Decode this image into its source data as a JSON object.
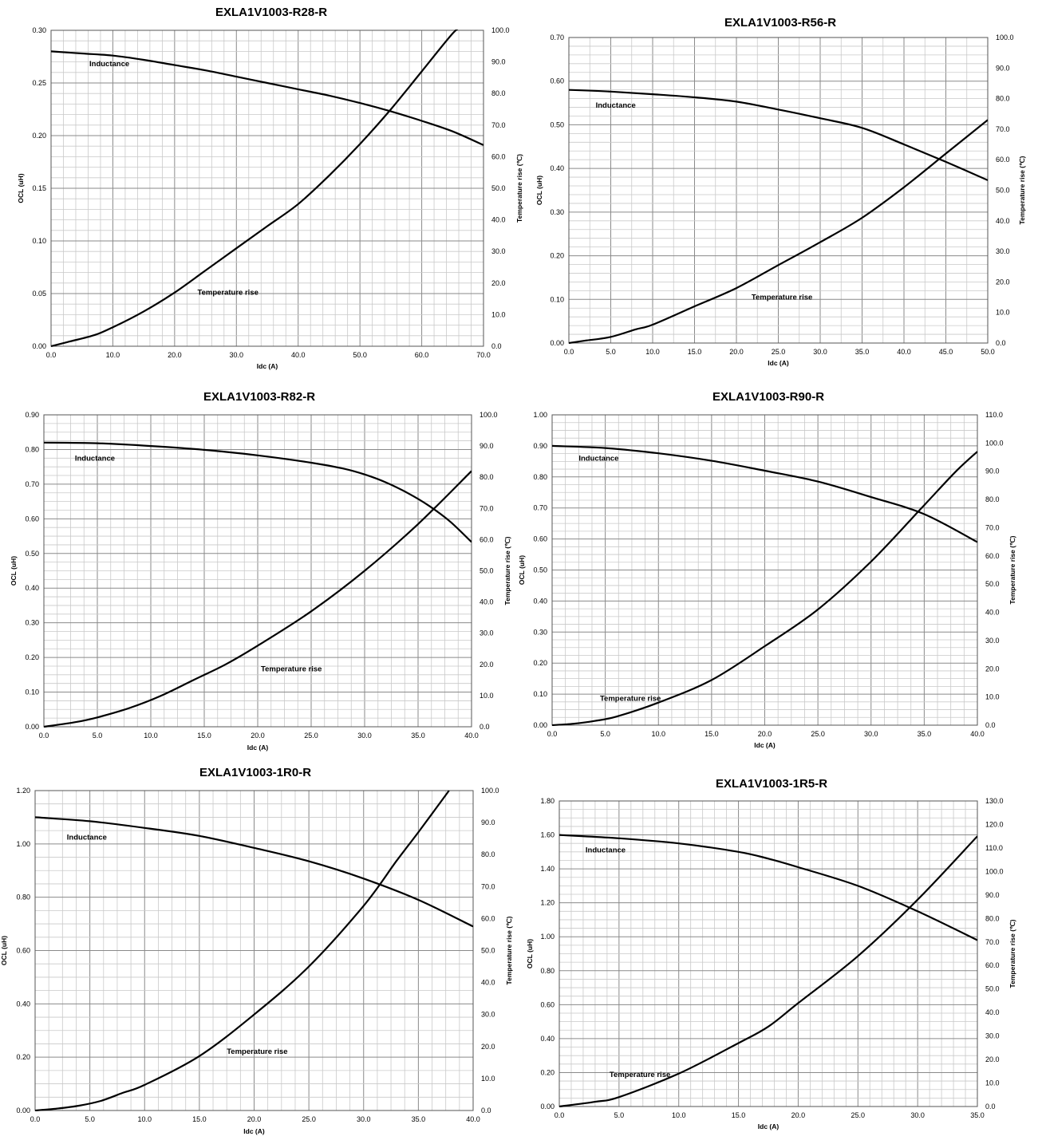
{
  "chart_data": [
    {
      "type": "line",
      "title": "EXLA1V1003-R28-R",
      "xlabel": "Idc (A)",
      "ylabel": "OCL (uH)",
      "y2label": "Temperature rise (℃)",
      "xlim": [
        0,
        70
      ],
      "ylim": [
        0,
        0.3
      ],
      "y2lim": [
        0,
        100
      ],
      "x_ticks": [
        "0.0",
        "10.0",
        "20.0",
        "30.0",
        "40.0",
        "50.0",
        "60.0",
        "70.0"
      ],
      "y_ticks": [
        "0.00",
        "0.05",
        "0.10",
        "0.15",
        "0.20",
        "0.25",
        "0.30"
      ],
      "y2_ticks": [
        "0.0",
        "10.0",
        "20.0",
        "30.0",
        "40.0",
        "50.0",
        "60.0",
        "70.0",
        "80.0",
        "90.0",
        "100.0"
      ],
      "grid": true,
      "series": [
        {
          "name": "Inductance",
          "axis": "left",
          "label_at": [
            6.2,
            0.268
          ],
          "x": [
            0,
            5,
            10,
            15,
            20,
            25,
            30,
            35,
            40,
            45,
            50,
            55,
            60,
            65,
            70
          ],
          "y": [
            0.28,
            0.278,
            0.276,
            0.272,
            0.267,
            0.262,
            0.256,
            0.25,
            0.244,
            0.238,
            0.231,
            0.223,
            0.214,
            0.204,
            0.191
          ]
        },
        {
          "name": "Temperature rise",
          "axis": "right",
          "label_at": [
            23.7,
            17
          ],
          "x": [
            0,
            3,
            7,
            10,
            15,
            20,
            25,
            30,
            35,
            40,
            45,
            50,
            55,
            60,
            65,
            66.5
          ],
          "y": [
            0,
            1.5,
            3.5,
            6,
            11,
            17,
            24,
            31,
            38,
            45,
            54,
            64,
            75,
            87,
            99,
            101
          ]
        }
      ]
    },
    {
      "type": "line",
      "title": "EXLA1V1003-R56-R",
      "xlabel": "Idc (A)",
      "ylabel": "OCL (uH)",
      "y2label": "Temperature rise (℃)",
      "xlim": [
        0,
        50
      ],
      "ylim": [
        0,
        0.7
      ],
      "y2lim": [
        0,
        100
      ],
      "x_ticks": [
        "0.0",
        "5.0",
        "10.0",
        "15.0",
        "20.0",
        "25.0",
        "30.0",
        "35.0",
        "40.0",
        "45.0",
        "50.0"
      ],
      "y_ticks": [
        "0.00",
        "0.10",
        "0.20",
        "0.30",
        "0.40",
        "0.50",
        "0.60",
        "0.70"
      ],
      "y2_ticks": [
        "0.0",
        "10.0",
        "20.0",
        "30.0",
        "40.0",
        "50.0",
        "60.0",
        "70.0",
        "80.0",
        "90.0",
        "100.0"
      ],
      "grid": true,
      "series": [
        {
          "name": "Inductance",
          "axis": "left",
          "label_at": [
            3.2,
            0.545
          ],
          "x": [
            0,
            5,
            10,
            15,
            20,
            25,
            30,
            35,
            40,
            45,
            50
          ],
          "y": [
            0.58,
            0.576,
            0.57,
            0.563,
            0.553,
            0.535,
            0.515,
            0.493,
            0.455,
            0.415,
            0.373
          ]
        },
        {
          "name": "Temperature rise",
          "axis": "right",
          "label_at": [
            21.8,
            15
          ],
          "x": [
            0,
            2,
            5,
            8,
            10,
            15,
            20,
            25,
            30,
            35,
            40,
            45,
            50
          ],
          "y": [
            0,
            0.8,
            2,
            4.5,
            6,
            12,
            18,
            25.5,
            33,
            41,
            51,
            62,
            73
          ]
        }
      ]
    },
    {
      "type": "line",
      "title": "EXLA1V1003-R82-R",
      "xlabel": "Idc (A)",
      "ylabel": "OCL (uH)",
      "y2label": "Temperature rise (℃)",
      "xlim": [
        0,
        40
      ],
      "ylim": [
        0,
        0.9
      ],
      "y2lim": [
        0,
        100
      ],
      "x_ticks": [
        "0.0",
        "5.0",
        "10.0",
        "15.0",
        "20.0",
        "25.0",
        "30.0",
        "35.0",
        "40.0"
      ],
      "y_ticks": [
        "0.00",
        "0.10",
        "0.20",
        "0.30",
        "0.40",
        "0.50",
        "0.60",
        "0.70",
        "0.80",
        "0.90"
      ],
      "y2_ticks": [
        "0.0",
        "10.0",
        "20.0",
        "30.0",
        "40.0",
        "50.0",
        "60.0",
        "70.0",
        "80.0",
        "90.0",
        "100.0"
      ],
      "grid": true,
      "series": [
        {
          "name": "Inductance",
          "axis": "left",
          "label_at": [
            2.9,
            0.775
          ],
          "x": [
            0,
            5,
            10,
            15,
            20,
            25,
            28,
            30,
            32,
            34,
            36,
            38,
            40
          ],
          "y": [
            0.82,
            0.818,
            0.81,
            0.799,
            0.783,
            0.762,
            0.745,
            0.728,
            0.705,
            0.675,
            0.638,
            0.592,
            0.533
          ]
        },
        {
          "name": "Temperature rise",
          "axis": "right",
          "label_at": [
            20.3,
            18.5
          ],
          "x": [
            0,
            3,
            5,
            8,
            11,
            14,
            17,
            20,
            25,
            30,
            35,
            40
          ],
          "y": [
            0,
            1.5,
            3,
            6,
            10,
            15,
            20,
            26,
            37,
            50,
            65,
            82
          ]
        }
      ]
    },
    {
      "type": "line",
      "title": "EXLA1V1003-R90-R",
      "xlabel": "Idc (A)",
      "ylabel": "OCL (uH)",
      "y2label": "Temperature rise (℃)",
      "xlim": [
        0,
        40
      ],
      "ylim": [
        0,
        1.0
      ],
      "y2lim": [
        0,
        110
      ],
      "x_ticks": [
        "0.0",
        "5.0",
        "10.0",
        "15.0",
        "20.0",
        "25.0",
        "30.0",
        "35.0",
        "40.0"
      ],
      "y_ticks": [
        "0.00",
        "0.10",
        "0.20",
        "0.30",
        "0.40",
        "0.50",
        "0.60",
        "0.70",
        "0.80",
        "0.90",
        "1.00"
      ],
      "y2_ticks": [
        "0.0",
        "10.0",
        "20.0",
        "30.0",
        "40.0",
        "50.0",
        "60.0",
        "70.0",
        "80.0",
        "90.0",
        "100.0",
        "110.0"
      ],
      "grid": true,
      "series": [
        {
          "name": "Inductance",
          "axis": "left",
          "label_at": [
            2.5,
            0.86
          ],
          "x": [
            0,
            5,
            10,
            15,
            20,
            25,
            30,
            35,
            40
          ],
          "y": [
            0.9,
            0.893,
            0.876,
            0.852,
            0.82,
            0.785,
            0.735,
            0.68,
            0.59
          ]
        },
        {
          "name": "Temperature rise",
          "axis": "right",
          "label_at": [
            4.5,
            9.5
          ],
          "x": [
            0,
            2,
            4,
            6,
            10,
            15,
            20,
            25,
            30,
            35,
            38,
            40
          ],
          "y": [
            0,
            0.5,
            1.5,
            3,
            8,
            16,
            28,
            41,
            58,
            78,
            90,
            97
          ]
        }
      ]
    },
    {
      "type": "line",
      "title": "EXLA1V1003-1R0-R",
      "xlabel": "Idc (A)",
      "ylabel": "OCL (uH)",
      "y2label": "Temperature rise (℃)",
      "xlim": [
        0,
        40
      ],
      "ylim": [
        0,
        1.2
      ],
      "y2lim": [
        0,
        100
      ],
      "x_ticks": [
        "0.0",
        "5.0",
        "10.0",
        "15.0",
        "20.0",
        "25.0",
        "30.0",
        "35.0",
        "40.0"
      ],
      "y_ticks": [
        "0.00",
        "0.20",
        "0.40",
        "0.60",
        "0.80",
        "1.00",
        "1.20"
      ],
      "y2_ticks": [
        "0.0",
        "10.0",
        "20.0",
        "30.0",
        "40.0",
        "50.0",
        "60.0",
        "70.0",
        "80.0",
        "90.0",
        "100.0"
      ],
      "grid": true,
      "series": [
        {
          "name": "Inductance",
          "axis": "left",
          "label_at": [
            2.9,
            1.025
          ],
          "x": [
            0,
            5,
            10,
            15,
            20,
            25,
            30,
            35,
            40
          ],
          "y": [
            1.1,
            1.085,
            1.06,
            1.03,
            0.985,
            0.935,
            0.87,
            0.79,
            0.69
          ]
        },
        {
          "name": "Temperature rise",
          "axis": "right",
          "label_at": [
            17.5,
            18.5
          ],
          "x": [
            0,
            2,
            4,
            6,
            8,
            10,
            15,
            20,
            25,
            30,
            33,
            35,
            37.8
          ],
          "y": [
            0,
            0.6,
            1.5,
            3,
            5.5,
            8,
            17,
            30,
            45,
            64,
            78,
            87,
            100
          ]
        }
      ]
    },
    {
      "type": "line",
      "title": "EXLA1V1003-1R5-R",
      "xlabel": "Idc (A)",
      "ylabel": "OCL (uH)",
      "y2label": "Temperature rise (℃)",
      "xlim": [
        0,
        35
      ],
      "ylim": [
        0,
        1.8
      ],
      "y2lim": [
        0,
        130
      ],
      "x_ticks": [
        "0.0",
        "5.0",
        "10.0",
        "15.0",
        "20.0",
        "25.0",
        "30.0",
        "35.0"
      ],
      "y_ticks": [
        "0.00",
        "0.20",
        "0.40",
        "0.60",
        "0.80",
        "1.00",
        "1.20",
        "1.40",
        "1.60",
        "1.80"
      ],
      "y2_ticks": [
        "0.0",
        "10.0",
        "20.0",
        "30.0",
        "40.0",
        "50.0",
        "60.0",
        "70.0",
        "80.0",
        "90.0",
        "100.0",
        "110.0",
        "120.0",
        "130.0"
      ],
      "grid": true,
      "series": [
        {
          "name": "Inductance",
          "axis": "left",
          "label_at": [
            2.2,
            1.51
          ],
          "x": [
            0,
            5,
            10,
            15,
            17.5,
            20,
            25,
            30,
            35
          ],
          "y": [
            1.6,
            1.58,
            1.55,
            1.5,
            1.46,
            1.41,
            1.3,
            1.15,
            0.98
          ]
        },
        {
          "name": "Temperature rise",
          "axis": "right",
          "label_at": [
            4.2,
            13.5
          ],
          "x": [
            0,
            3,
            5,
            10,
            15,
            17.5,
            20,
            25,
            30,
            35
          ],
          "y": [
            0,
            2,
            4,
            14,
            27,
            34,
            44,
            64,
            88,
            115
          ]
        }
      ]
    }
  ]
}
